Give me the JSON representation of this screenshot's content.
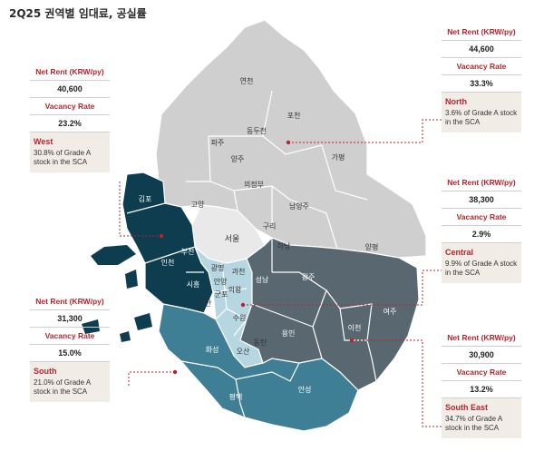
{
  "title": "2Q25 권역별 임대료, 공실률",
  "labels": {
    "rent": "Net Rent (KRW/py)",
    "vacancy": "Vacancy Rate"
  },
  "colors": {
    "north": "#cfcfcf",
    "seoul": "#e9e9e9",
    "west": "#0e3d4f",
    "central": "#b6d6e2",
    "south": "#3e7f95",
    "southeast": "#586770",
    "accent": "#b3262f"
  },
  "regions": {
    "north": {
      "name": "North",
      "rent": "44,600",
      "vacancy": "33.3%",
      "desc": "3.6% of Grade A stock in the SCA"
    },
    "west": {
      "name": "West",
      "rent": "40,600",
      "vacancy": "23.2%",
      "desc": "30.8% of Grade A stock in the SCA"
    },
    "central": {
      "name": "Central",
      "rent": "38,300",
      "vacancy": "2.9%",
      "desc": "9.9% of Grade A stock in the SCA"
    },
    "south": {
      "name": "South",
      "rent": "31,300",
      "vacancy": "15.0%",
      "desc": "21.0% of Grade A stock in the SCA"
    },
    "southeast": {
      "name": "South East",
      "rent": "30,900",
      "vacancy": "13.2%",
      "desc": "34.7% of Grade A stock in the SCA"
    }
  },
  "cities": {
    "yeoncheon": "연천",
    "pocheon": "포천",
    "paju": "파주",
    "dongducheon": "동두천",
    "gapyeong": "가평",
    "yangju": "양주",
    "uijeongbu": "의정부",
    "goyang": "고양",
    "namyangju": "남양주",
    "guri": "구리",
    "seoul": "서울",
    "hanam": "하남",
    "yangpyeong": "양평",
    "gimpo": "김포",
    "incheon": "인천",
    "bucheon": "부천",
    "siheung": "시흥",
    "gwangmyeong": "광명",
    "anyang": "안양",
    "gwacheon": "과천",
    "seongnam": "성남",
    "gwangju": "광주",
    "gunpo": "군포",
    "uiwang": "의왕",
    "ansan": "안산",
    "suwon": "수원",
    "yongin": "용인",
    "icheon": "이천",
    "yeoju": "여주",
    "hwaseong": "화성",
    "osan": "오산",
    "dongtan": "동탄",
    "pyeongtaek": "평택",
    "anseong": "안성"
  }
}
